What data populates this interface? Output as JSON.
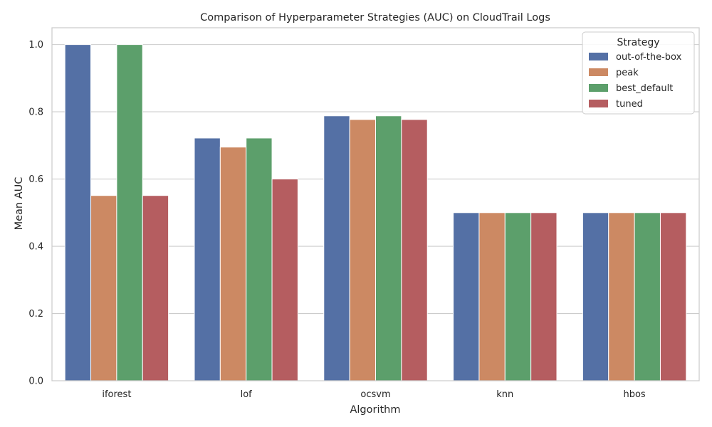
{
  "chart_data": {
    "type": "bar",
    "title": "Comparison of Hyperparameter Strategies (AUC) on CloudTrail Logs",
    "xlabel": "Algorithm",
    "ylabel": "Mean AUC",
    "categories": [
      "iforest",
      "lof",
      "ocsvm",
      "knn",
      "hbos"
    ],
    "ylim": [
      0,
      1.05
    ],
    "yticks": [
      "0.0",
      "0.2",
      "0.4",
      "0.6",
      "0.8",
      "1.0"
    ],
    "grid": true,
    "legend": {
      "title": "Strategy",
      "position": "top-right"
    },
    "series": [
      {
        "name": "out-of-the-box",
        "color": "#5470a5",
        "values": [
          1.0,
          0.722,
          0.788,
          0.5,
          0.5
        ]
      },
      {
        "name": "peak",
        "color": "#cc8963",
        "values": [
          0.551,
          0.695,
          0.777,
          0.5,
          0.5
        ]
      },
      {
        "name": "best_default",
        "color": "#5c9f6b",
        "values": [
          1.0,
          0.722,
          0.788,
          0.5,
          0.5
        ]
      },
      {
        "name": "tuned",
        "color": "#b55d60",
        "values": [
          0.551,
          0.6,
          0.777,
          0.5,
          0.5
        ]
      }
    ]
  }
}
